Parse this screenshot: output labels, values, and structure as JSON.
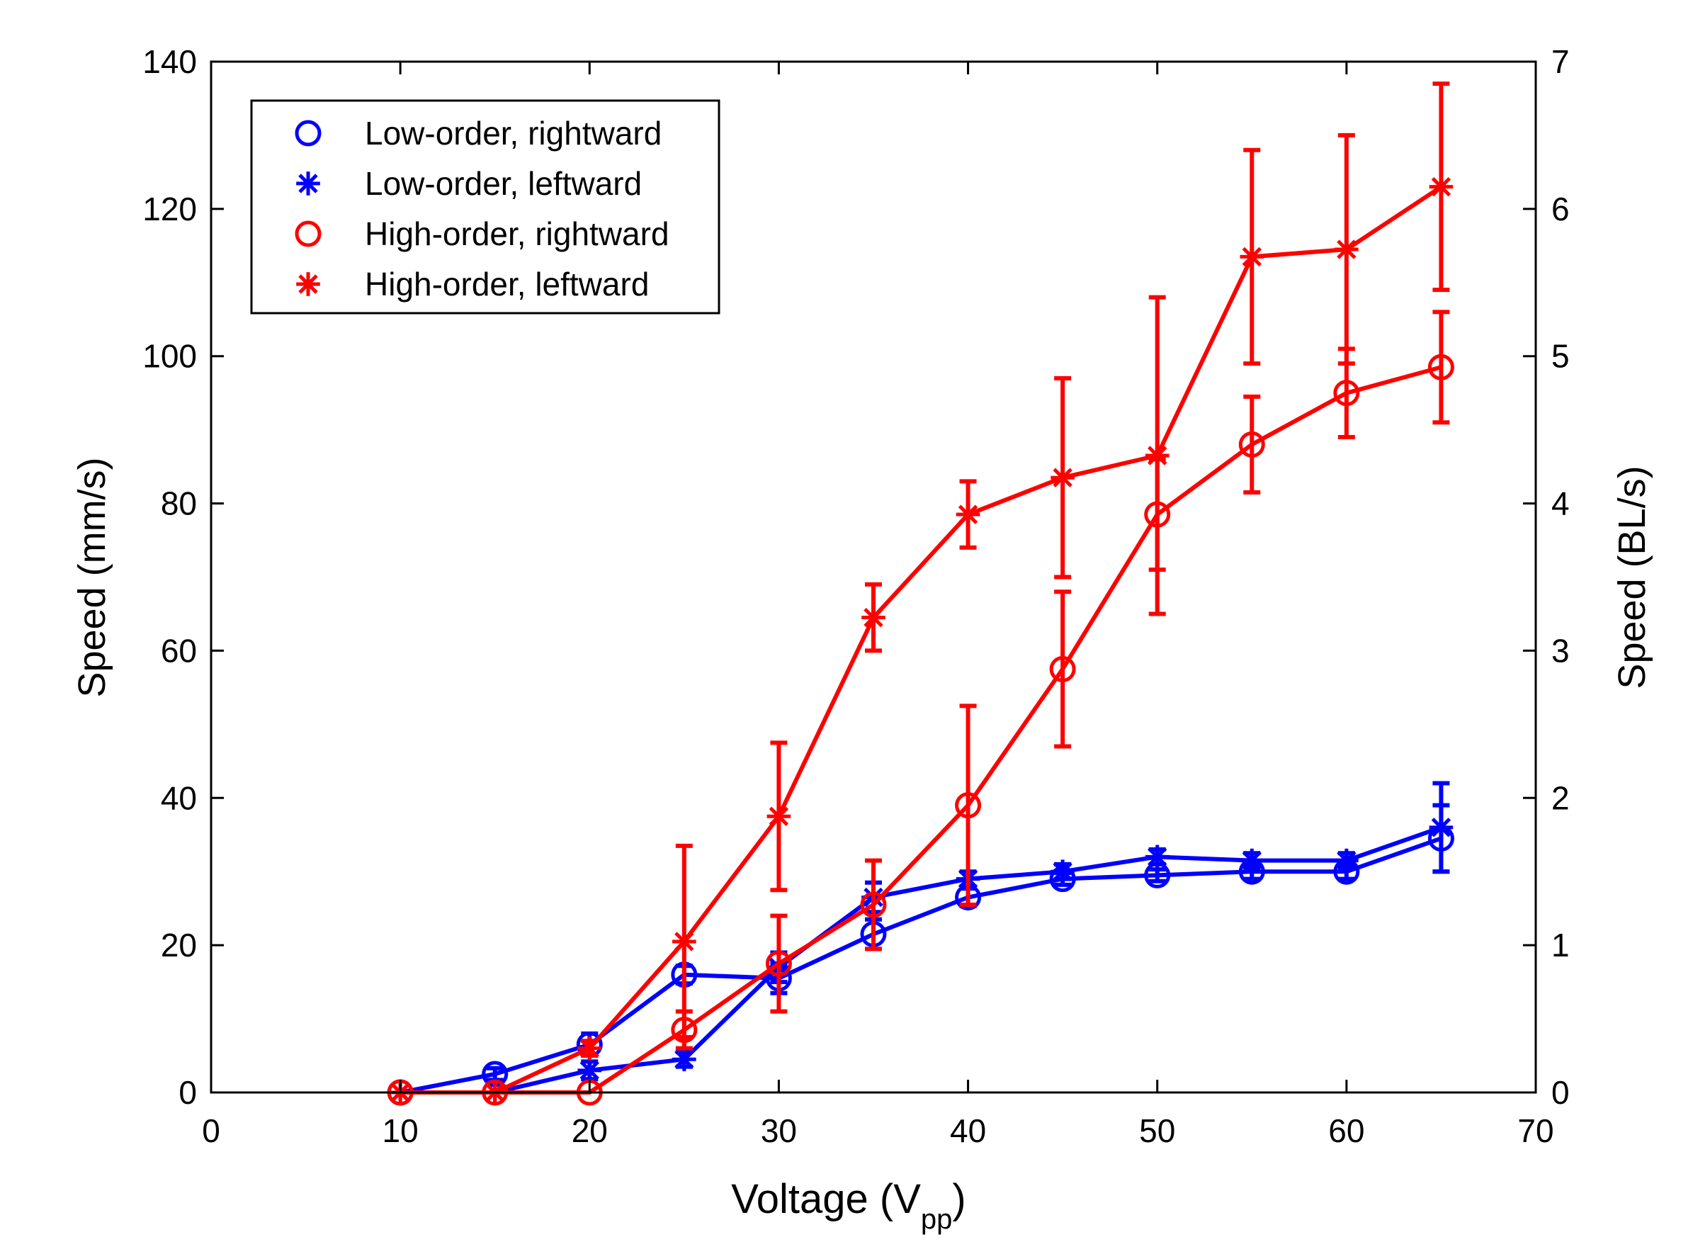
{
  "chart_data": {
    "type": "line",
    "title": "",
    "xlabel": "Voltage (V",
    "xlabel_sub": "pp",
    "xlabel_close": ")",
    "ylabel": "Speed (mm/s)",
    "y2label": "Speed (BL/s)",
    "xlim": [
      0,
      70
    ],
    "ylim": [
      0,
      140
    ],
    "y2lim": [
      0,
      7
    ],
    "xticks": [
      0,
      10,
      20,
      30,
      40,
      50,
      60,
      70
    ],
    "yticks": [
      0,
      20,
      40,
      60,
      80,
      100,
      120,
      140
    ],
    "y2ticks": [
      0,
      1,
      2,
      3,
      4,
      5,
      6,
      7
    ],
    "grid": false,
    "legend_position": "top-left",
    "x": [
      10,
      15,
      20,
      25,
      30,
      35,
      40,
      45,
      50,
      55,
      60,
      65
    ],
    "series": [
      {
        "name": "Low-order, rightward",
        "color": "#0000ff",
        "marker": "circle",
        "values": [
          0,
          2.5,
          6.5,
          16,
          15.5,
          21.5,
          26.5,
          29,
          29.5,
          30,
          30,
          34.5
        ],
        "errors": [
          0,
          0.8,
          1.5,
          1.2,
          2,
          2,
          1.2,
          0.8,
          0.8,
          1,
          1,
          4.5
        ]
      },
      {
        "name": "Low-order, leftward",
        "color": "#0000ff",
        "marker": "asterisk",
        "values": [
          0,
          0,
          3,
          4.5,
          17,
          26.5,
          29,
          30,
          32,
          31.5,
          31.5,
          36
        ],
        "errors": [
          0,
          0,
          1.2,
          1,
          2,
          2,
          1,
          1,
          1,
          1,
          1,
          6
        ]
      },
      {
        "name": "High-order, rightward",
        "color": "#ff0000",
        "marker": "circle",
        "values": [
          0,
          0,
          0,
          8.5,
          17.5,
          25.5,
          39,
          57.5,
          78.5,
          88,
          95,
          98.5
        ],
        "errors": [
          0,
          0,
          0,
          2.5,
          6.5,
          6,
          13.5,
          10.5,
          7.5,
          6.5,
          6,
          7.5
        ]
      },
      {
        "name": "High-order, leftward",
        "color": "#ff0000",
        "marker": "asterisk",
        "values": [
          0,
          0,
          6,
          20.5,
          37.5,
          64.5,
          78.5,
          83.5,
          86.5,
          113.5,
          114.5,
          123
        ],
        "errors": [
          0,
          0,
          1,
          13,
          10,
          4.5,
          4.5,
          13.5,
          21.5,
          14.5,
          15.5,
          14
        ]
      }
    ]
  }
}
